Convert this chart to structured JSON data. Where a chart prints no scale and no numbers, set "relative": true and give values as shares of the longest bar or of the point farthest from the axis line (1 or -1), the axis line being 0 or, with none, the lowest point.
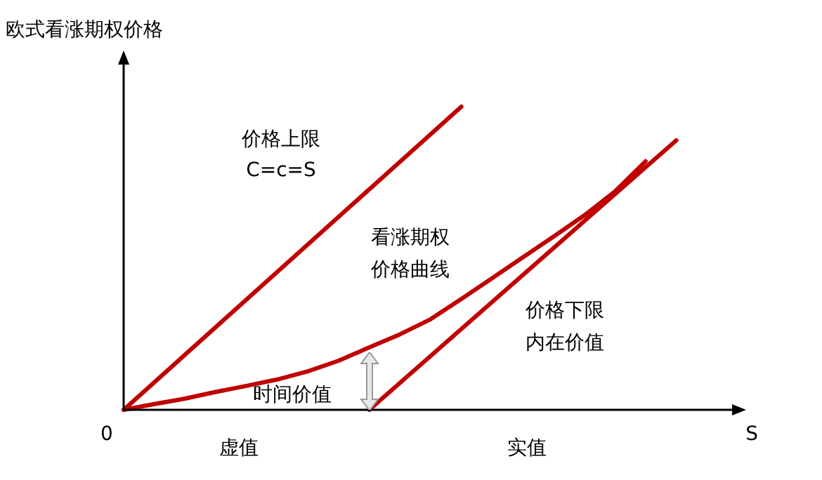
{
  "chart_data": {
    "type": "line",
    "relative": true,
    "ylabel": "欧式看涨期权价格",
    "xlabel": "S",
    "tick_labels": false,
    "marker": "none",
    "line_style": "solid",
    "categories": [
      null,
      null,
      null,
      null,
      null,
      null,
      null,
      null,
      null,
      null,
      null,
      null,
      null,
      null,
      null,
      null,
      null,
      null,
      null,
      null,
      null
    ],
    "series": [
      {
        "color": "#c00000",
        "values": [
          0,
          null,
          null,
          null,
          null,
          null,
          null,
          null,
          null,
          null,
          null,
          1,
          null,
          null,
          null,
          null,
          null,
          null,
          null,
          null,
          null
        ]
      },
      {
        "color": "#c00000",
        "values": [
          null,
          null,
          null,
          null,
          null,
          null,
          null,
          null,
          0,
          null,
          null,
          null,
          null,
          null,
          null,
          null,
          null,
          null,
          0.889,
          null,
          null
        ]
      },
      {
        "color": "#c00000",
        "values": [
          0,
          0.019,
          0.037,
          0.059,
          0.079,
          0.1,
          0.127,
          0.162,
          0.206,
          0.249,
          0.299,
          0.366,
          0.434,
          0.503,
          0.571,
          0.641,
          0.72,
          0.82,
          null,
          null,
          null
        ]
      }
    ],
    "annotations": [
      "价格上限",
      "C=c=S",
      "看涨期权",
      "价格曲线",
      "价格下限",
      "内在价值",
      "时间价值",
      "虚值",
      "实值",
      "0"
    ]
  }
}
